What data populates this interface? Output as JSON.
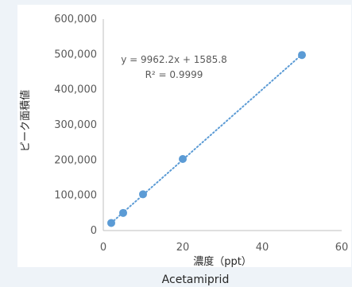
{
  "chart_data": {
    "type": "scatter",
    "title": "",
    "caption": "Acetamiprid",
    "xlabel": "濃度（ppt）",
    "ylabel": "ピーク面積値",
    "xlim": [
      0,
      60
    ],
    "ylim": [
      0,
      600000
    ],
    "x_ticks": [
      0,
      20,
      40,
      60
    ],
    "y_ticks": [
      0,
      100000,
      200000,
      300000,
      400000,
      500000,
      600000
    ],
    "x_tick_labels": [
      "0",
      "20",
      "40",
      "60"
    ],
    "y_tick_labels": [
      "0",
      "100,000",
      "200,000",
      "300,000",
      "400,000",
      "500,000",
      "600,000"
    ],
    "grid": false,
    "series": [
      {
        "points": [
          {
            "x": 2,
            "y": 21500
          },
          {
            "x": 5,
            "y": 50000
          },
          {
            "x": 10,
            "y": 103000
          },
          {
            "x": 20,
            "y": 203000
          },
          {
            "x": 50,
            "y": 498000
          }
        ],
        "color": "#5b9bd5"
      }
    ],
    "trendline": {
      "type": "linear",
      "slope": 9962.2,
      "intercept": 1585.8,
      "x_range": [
        2,
        50
      ],
      "color": "#5b9bd5",
      "style": "dotted"
    },
    "annotations": {
      "equation": "y = 9962.2x + 1585.8",
      "r_squared": "R² = 0.9999"
    }
  }
}
